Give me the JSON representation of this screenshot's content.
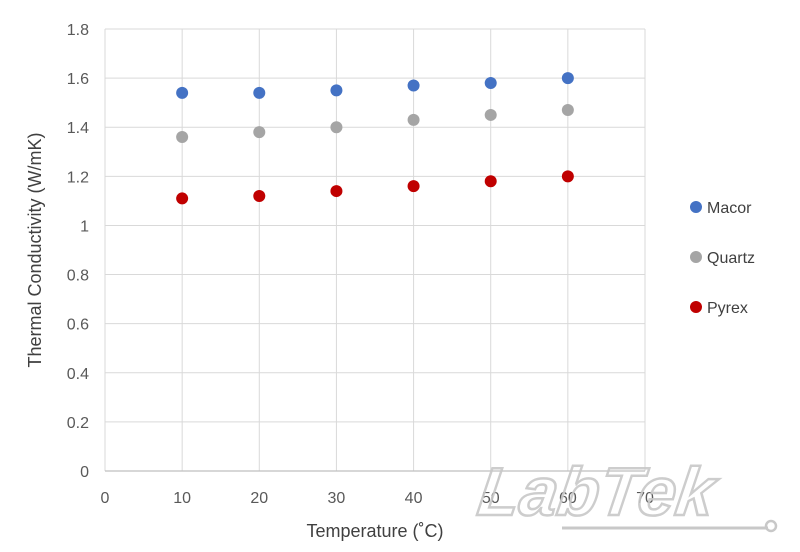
{
  "chart_data": {
    "type": "scatter",
    "title": "",
    "xlabel": "Temperature (˚C)",
    "ylabel": "Thermal Conductivity (W/mK)",
    "xlim": [
      0,
      70
    ],
    "ylim": [
      0,
      1.8
    ],
    "x_ticks": [
      "0",
      "10",
      "20",
      "30",
      "40",
      "50",
      "60",
      "70"
    ],
    "y_ticks": [
      "0",
      "0.2",
      "0.4",
      "0.6",
      "0.8",
      "1",
      "1.2",
      "1.4",
      "1.6",
      "1.8"
    ],
    "grid": true,
    "legend_position": "right",
    "series": [
      {
        "name": "Macor",
        "color": "#4472c4",
        "x": [
          10,
          20,
          30,
          40,
          50,
          60
        ],
        "y": [
          1.54,
          1.54,
          1.55,
          1.57,
          1.58,
          1.6
        ]
      },
      {
        "name": "Quartz",
        "color": "#a5a5a5",
        "x": [
          10,
          20,
          30,
          40,
          50,
          60
        ],
        "y": [
          1.36,
          1.38,
          1.4,
          1.43,
          1.45,
          1.47
        ]
      },
      {
        "name": "Pyrex",
        "color": "#c00000",
        "x": [
          10,
          20,
          30,
          40,
          50,
          60
        ],
        "y": [
          1.11,
          1.12,
          1.14,
          1.16,
          1.18,
          1.2
        ]
      }
    ]
  },
  "watermark": {
    "text": "LabTek"
  }
}
